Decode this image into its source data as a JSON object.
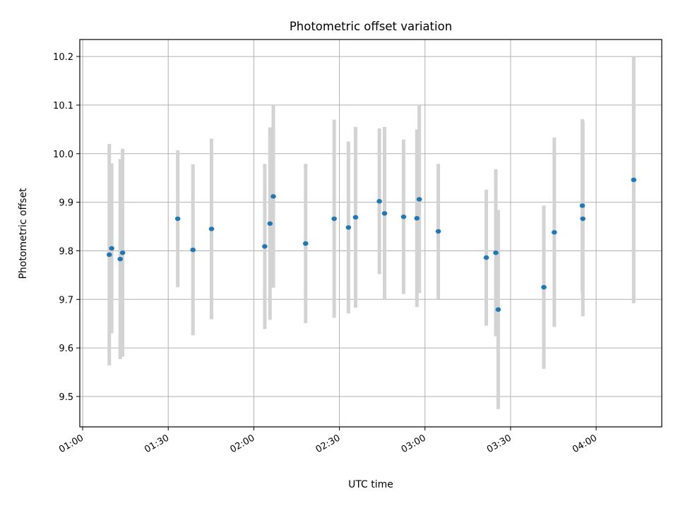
{
  "chart_data": {
    "type": "scatter",
    "title": "Photometric offset variation",
    "xlabel": "UTC time",
    "ylabel": "Photometric offset",
    "grid": true,
    "legend": "none",
    "xlim": [
      "00:59:00",
      "04:23:00"
    ],
    "ylim": [
      9.4375,
      10.235
    ],
    "xticks": [
      "01:00",
      "01:30",
      "02:00",
      "02:30",
      "03:00",
      "03:30",
      "04:00"
    ],
    "yticks": [
      9.5,
      9.6,
      9.7,
      9.8,
      9.9,
      10.0,
      10.1,
      10.2
    ],
    "colors": {
      "point": "#1f77b4",
      "errorbar": "#d3d3d3",
      "grid": "#b0b0b0"
    },
    "points": [
      {
        "x": "01:09:20",
        "y": 9.792,
        "yerr": 0.228
      },
      {
        "x": "01:10:10",
        "y": 9.805,
        "yerr": 0.175
      },
      {
        "x": "01:13:10",
        "y": 9.783,
        "yerr": 0.206
      },
      {
        "x": "01:14:00",
        "y": 9.796,
        "yerr": 0.214
      },
      {
        "x": "01:33:20",
        "y": 9.866,
        "yerr": 0.141
      },
      {
        "x": "01:38:40",
        "y": 9.802,
        "yerr": 0.176
      },
      {
        "x": "01:45:10",
        "y": 9.845,
        "yerr": 0.186
      },
      {
        "x": "02:03:50",
        "y": 9.809,
        "yerr": 0.17
      },
      {
        "x": "02:05:40",
        "y": 9.856,
        "yerr": 0.198
      },
      {
        "x": "02:06:50",
        "y": 9.912,
        "yerr": 0.188
      },
      {
        "x": "02:18:10",
        "y": 9.815,
        "yerr": 0.164
      },
      {
        "x": "02:28:10",
        "y": 9.866,
        "yerr": 0.204
      },
      {
        "x": "02:33:10",
        "y": 9.848,
        "yerr": 0.177
      },
      {
        "x": "02:35:40",
        "y": 9.869,
        "yerr": 0.186
      },
      {
        "x": "02:44:00",
        "y": 9.902,
        "yerr": 0.15
      },
      {
        "x": "02:45:50",
        "y": 9.877,
        "yerr": 0.178
      },
      {
        "x": "02:52:30",
        "y": 9.87,
        "yerr": 0.159
      },
      {
        "x": "02:57:10",
        "y": 9.867,
        "yerr": 0.183
      },
      {
        "x": "02:58:00",
        "y": 9.906,
        "yerr": 0.193
      },
      {
        "x": "03:04:40",
        "y": 9.84,
        "yerr": 0.139
      },
      {
        "x": "03:21:30",
        "y": 9.786,
        "yerr": 0.14
      },
      {
        "x": "03:24:50",
        "y": 9.796,
        "yerr": 0.172
      },
      {
        "x": "03:25:40",
        "y": 9.679,
        "yerr": 0.205
      },
      {
        "x": "03:41:40",
        "y": 9.725,
        "yerr": 0.168
      },
      {
        "x": "03:45:20",
        "y": 9.838,
        "yerr": 0.195
      },
      {
        "x": "03:55:10",
        "y": 9.893,
        "yerr": 0.178
      },
      {
        "x": "03:55:20",
        "y": 9.866,
        "yerr": 0.201
      },
      {
        "x": "04:13:10",
        "y": 9.946,
        "yerr": 0.254
      }
    ]
  }
}
